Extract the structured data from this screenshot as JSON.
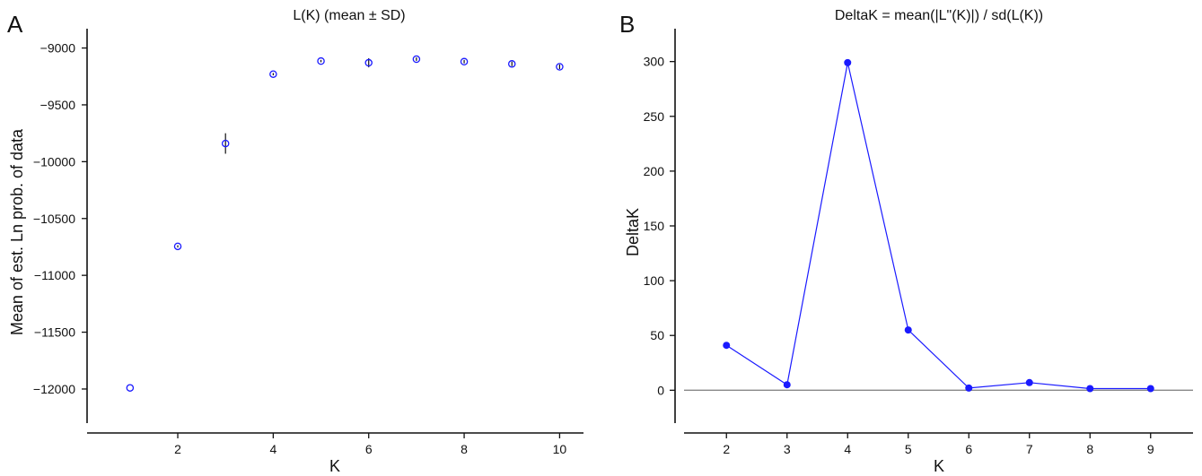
{
  "chart_data": [
    {
      "type": "scatter",
      "panel_label": "A",
      "title": "L(K) (mean ± SD)",
      "xlabel": "K",
      "ylabel": "Mean of est. Ln prob. of data",
      "xlim": [
        0.1,
        10.5
      ],
      "ylim": [
        -12300,
        -8830
      ],
      "xticks": [
        2,
        4,
        6,
        8,
        10
      ],
      "yticks": [
        -12000,
        -11500,
        -11000,
        -10500,
        -10000,
        -9500,
        -9000
      ],
      "ytick_labels": [
        "−12000",
        "−11500",
        "−11000",
        "−10500",
        "−10000",
        "−9500",
        "−9000"
      ],
      "marker": "open-circle",
      "color": "#1a1aff",
      "error_color": "#111111",
      "grid": false,
      "points": [
        {
          "x": 1,
          "y": -11990,
          "sd": 0
        },
        {
          "x": 2,
          "y": -10745,
          "sd": 10
        },
        {
          "x": 3,
          "y": -9840,
          "sd": 90
        },
        {
          "x": 4,
          "y": -9230,
          "sd": 10
        },
        {
          "x": 5,
          "y": -9115,
          "sd": 10
        },
        {
          "x": 6,
          "y": -9130,
          "sd": 40
        },
        {
          "x": 7,
          "y": -9098,
          "sd": 15
        },
        {
          "x": 8,
          "y": -9120,
          "sd": 15
        },
        {
          "x": 9,
          "y": -9140,
          "sd": 20
        },
        {
          "x": 10,
          "y": -9165,
          "sd": 20
        }
      ]
    },
    {
      "type": "line",
      "panel_label": "B",
      "title": "DeltaK = mean(|L\"(K)|) / sd(L(K))",
      "xlabel": "K",
      "ylabel": "DeltaK",
      "xlim": [
        1.3,
        9.7
      ],
      "ylim": [
        -30,
        330
      ],
      "xticks": [
        2,
        3,
        4,
        5,
        6,
        7,
        8,
        9
      ],
      "yticks": [
        0,
        50,
        100,
        150,
        200,
        250,
        300
      ],
      "marker": "filled-circle",
      "color": "#1a1aff",
      "zero_line_color": "#888888",
      "grid": false,
      "x": [
        2,
        3,
        4,
        5,
        6,
        7,
        8,
        9
      ],
      "values": [
        41,
        5,
        299,
        55,
        2,
        7,
        1.5,
        1.5
      ]
    }
  ]
}
